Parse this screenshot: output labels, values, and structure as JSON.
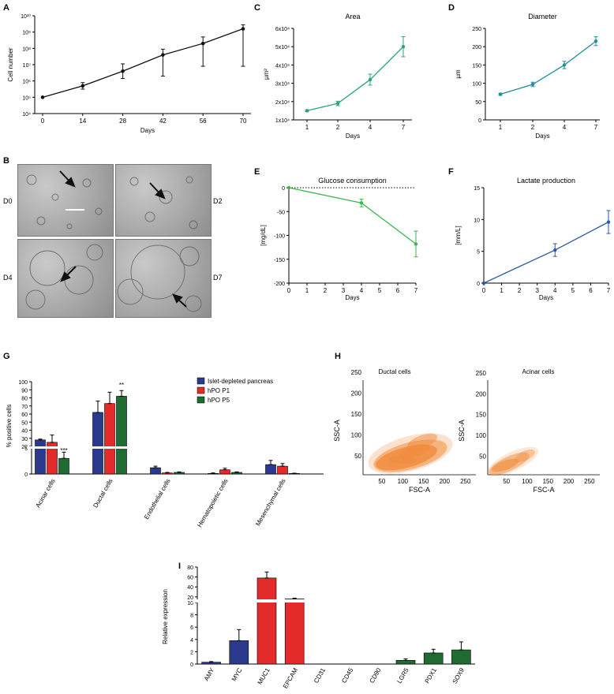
{
  "panels": {
    "A": "A",
    "B": "B",
    "C": "C",
    "D": "D",
    "E": "E",
    "F": "F",
    "G": "G",
    "H": "H",
    "I": "I"
  },
  "colors": {
    "black": "#111111",
    "green": "#2aa673",
    "teal": "#1f8f9a",
    "lightgreen": "#3cb64a",
    "blue": "#2a5aa6",
    "navy": "#2b3a8f",
    "red": "#e32b2b",
    "darkgreen": "#1f6b32",
    "orange": "#f08c3c"
  },
  "images": {
    "labels": [
      "D0",
      "D2",
      "D4",
      "D7"
    ]
  },
  "chart_data": [
    {
      "id": "A",
      "type": "line",
      "title": "",
      "xlabel": "Days",
      "ylabel": "Cell number",
      "x": [
        0,
        14,
        28,
        42,
        56,
        70
      ],
      "xticks": [
        "0",
        "14",
        "28",
        "42",
        "56",
        "70"
      ],
      "yticks": [
        "10⁴",
        "10⁵",
        "10⁶",
        "10⁷",
        "10⁸",
        "10⁹",
        "10¹⁰"
      ],
      "log_exponents": [
        4,
        5,
        6,
        7,
        8,
        9,
        10
      ],
      "y_log": [
        5.0,
        5.7,
        6.6,
        7.6,
        8.3,
        9.2
      ],
      "err_up": [
        0.0,
        0.2,
        0.45,
        0.35,
        0.4,
        0.25
      ],
      "err_down": [
        0.0,
        0.2,
        0.45,
        1.3,
        1.4,
        2.3
      ]
    },
    {
      "id": "C",
      "type": "line",
      "title": "Area",
      "xlabel": "Days",
      "ylabel": "µm²",
      "categories": [
        "1",
        "2",
        "4",
        "7"
      ],
      "yticks": [
        "1x10⁴",
        "2x10⁴",
        "3x10⁴",
        "4x10⁴",
        "5x10⁴",
        "6x10⁴"
      ],
      "ylim": [
        1,
        6
      ],
      "values": [
        1.5,
        1.9,
        3.2,
        5.0
      ],
      "err": [
        0.05,
        0.12,
        0.3,
        0.55
      ]
    },
    {
      "id": "D",
      "type": "line",
      "title": "Diameter",
      "xlabel": "Days",
      "ylabel": "µm",
      "categories": [
        "1",
        "2",
        "4",
        "7"
      ],
      "yticks": [
        "0",
        "50",
        "100",
        "150",
        "200",
        "250"
      ],
      "ylim": [
        0,
        250
      ],
      "values": [
        70,
        97,
        150,
        215
      ],
      "err": [
        3,
        6,
        10,
        12
      ]
    },
    {
      "id": "E",
      "type": "line",
      "title": "Glucose consumption",
      "xlabel": "Days",
      "ylabel": "[mg/dL]",
      "x": [
        0,
        4,
        7
      ],
      "xticks": [
        "0",
        "1",
        "2",
        "3",
        "4",
        "5",
        "6",
        "7"
      ],
      "yticks": [
        "0",
        "-50",
        "-100",
        "-150",
        "-200"
      ],
      "ylim": [
        -200,
        0
      ],
      "values": [
        0,
        -32,
        -118
      ],
      "err": [
        0,
        8,
        27
      ]
    },
    {
      "id": "F",
      "type": "line",
      "title": "Lactate production",
      "xlabel": "Days",
      "ylabel": "[mm/L]",
      "x": [
        0,
        4,
        7
      ],
      "xticks": [
        "0",
        "1",
        "2",
        "3",
        "4",
        "5",
        "6",
        "7"
      ],
      "yticks": [
        "0",
        "5",
        "10",
        "15"
      ],
      "ylim": [
        0,
        15
      ],
      "values": [
        0,
        5.2,
        9.6
      ],
      "err": [
        0,
        1.0,
        1.8
      ]
    },
    {
      "id": "G",
      "type": "bar",
      "title": "",
      "xlabel": "",
      "ylabel": "% positive cells",
      "categories": [
        "Acinar cells",
        "Ductal cells",
        "Endothelial cells",
        "Hematopoietic cells",
        "Mesenchymal cells"
      ],
      "series": [
        {
          "name": "Islet-depleted pancreas",
          "values": [
            28,
            62,
            1.2,
            0.1,
            1.8
          ],
          "err": [
            1,
            14,
            0.3,
            0.1,
            0.8
          ]
        },
        {
          "name": "hPO P1",
          "values": [
            25,
            73,
            0.2,
            0.8,
            1.5
          ],
          "err": [
            9,
            14,
            0.1,
            0.3,
            0.5
          ]
        },
        {
          "name": "hPO P5",
          "values": [
            3,
            82,
            0.3,
            0.3,
            0.1
          ],
          "err": [
            1.2,
            7,
            0.1,
            0.1,
            0.05
          ]
        }
      ],
      "annotations": [
        "***",
        "**"
      ],
      "ytick_lower": [
        "0",
        "5"
      ],
      "ytick_upper": [
        "20",
        "30",
        "40",
        "50",
        "60",
        "70",
        "80",
        "90",
        "100"
      ]
    },
    {
      "id": "H1",
      "type": "scatter",
      "title": "Ductal cells",
      "xlabel": "FSC-A",
      "ylabel": "SSC-A",
      "xticks": [
        "50",
        "100",
        "150",
        "200",
        "250"
      ],
      "yticks": [
        "50",
        "100",
        "150",
        "200",
        "250"
      ]
    },
    {
      "id": "H2",
      "type": "scatter",
      "title": "Acinar cells",
      "xlabel": "FSC-A",
      "ylabel": "SSC-A",
      "xticks": [
        "50",
        "100",
        "150",
        "200",
        "250"
      ],
      "yticks": [
        "50",
        "100",
        "150",
        "200",
        "250"
      ]
    },
    {
      "id": "I",
      "type": "bar",
      "title": "",
      "xlabel": "",
      "ylabel": "Relative expression",
      "categories": [
        "AMY",
        "MYC",
        "MUC1",
        "EPCAM",
        "CD31",
        "CD45",
        "CD90",
        "LGR5",
        "PDX1",
        "SOX9"
      ],
      "values": [
        0.3,
        3.8,
        58,
        16,
        0,
        0,
        0,
        0.6,
        1.8,
        2.3
      ],
      "err": [
        0.1,
        1.8,
        12,
        1.5,
        0,
        0,
        0,
        0.25,
        0.6,
        1.3
      ],
      "bar_colors": [
        "navy",
        "navy",
        "red",
        "red",
        "none",
        "none",
        "none",
        "darkgreen",
        "darkgreen",
        "darkgreen"
      ],
      "ytick_lower": [
        "0",
        "2",
        "4",
        "6",
        "8",
        "10"
      ],
      "ytick_upper": [
        "20",
        "40",
        "60",
        "80"
      ]
    }
  ]
}
